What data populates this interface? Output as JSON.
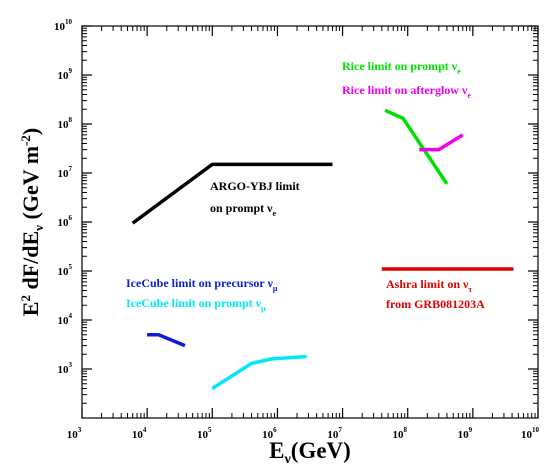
{
  "chart_data": {
    "type": "line",
    "title": "",
    "xlabel": {
      "main": "E",
      "sub": "ν",
      "rest": "(GeV)"
    },
    "ylabel": {
      "p1": "E",
      "sup1": "2",
      "p2": " dF/dE",
      "sub1": "ν",
      "p3": " (GeV m",
      "sup2": "-2",
      "p4": ")"
    },
    "x_scale": "log",
    "y_scale": "log",
    "xlim": [
      1000,
      10000000000
    ],
    "ylim": [
      100,
      10000000000
    ],
    "x_ticks": [
      {
        "value": 1000,
        "base": "10",
        "exp": "3"
      },
      {
        "value": 10000,
        "base": "10",
        "exp": "4"
      },
      {
        "value": 100000,
        "base": "10",
        "exp": "5"
      },
      {
        "value": 1000000,
        "base": "10",
        "exp": "6"
      },
      {
        "value": 10000000,
        "base": "10",
        "exp": "7"
      },
      {
        "value": 100000000,
        "base": "10",
        "exp": "8"
      },
      {
        "value": 1000000000,
        "base": "10",
        "exp": "9"
      },
      {
        "value": 10000000000,
        "base": "10",
        "exp": "10"
      }
    ],
    "y_ticks": [
      {
        "value": 1000,
        "base": "10",
        "exp": "3"
      },
      {
        "value": 10000,
        "base": "10",
        "exp": "4"
      },
      {
        "value": 100000,
        "base": "10",
        "exp": "5"
      },
      {
        "value": 1000000,
        "base": "10",
        "exp": "6"
      },
      {
        "value": 10000000,
        "base": "10",
        "exp": "7"
      },
      {
        "value": 100000000,
        "base": "10",
        "exp": "8"
      },
      {
        "value": 1000000000,
        "base": "10",
        "exp": "9"
      },
      {
        "value": 10000000000,
        "base": "10",
        "exp": "10"
      }
    ],
    "grid": false,
    "series": [
      {
        "key": "argo",
        "color": "#000000",
        "points": [
          [
            6000,
            950000
          ],
          [
            100000,
            15000000
          ],
          [
            7000000,
            15000000
          ]
        ],
        "label": [
          [
            {
              "t": "ARGO-YBJ limit",
              "s": "n"
            }
          ],
          [
            {
              "t": "on prompt ",
              "s": "n"
            },
            {
              "t": "ν",
              "s": "n"
            },
            {
              "t": "e",
              "s": "sub"
            }
          ]
        ]
      },
      {
        "key": "icecube-precursor",
        "color": "#0a1fd0",
        "points": [
          [
            10000,
            5000
          ],
          [
            15000,
            5000
          ],
          [
            38000,
            3000
          ]
        ],
        "label": [
          [
            {
              "t": "IceCube limit on precursor ",
              "s": "n"
            },
            {
              "t": "ν",
              "s": "n"
            },
            {
              "t": "μ",
              "s": "sub"
            }
          ]
        ]
      },
      {
        "key": "icecube-prompt",
        "color": "#00e8f8",
        "points": [
          [
            100000,
            400
          ],
          [
            400000,
            1300
          ],
          [
            800000,
            1600
          ],
          [
            2800000,
            1800
          ]
        ],
        "label": [
          [
            {
              "t": "IceCube limit on prompt ",
              "s": "n"
            },
            {
              "t": "ν",
              "s": "n"
            },
            {
              "t": "μ",
              "s": "sub"
            }
          ]
        ]
      },
      {
        "key": "rice-prompt",
        "color": "#00e000",
        "points": [
          [
            45000000,
            190000000
          ],
          [
            85000000,
            130000000
          ],
          [
            400000000,
            6000000
          ]
        ],
        "label": [
          [
            {
              "t": "Rice limit on prompt ",
              "s": "n"
            },
            {
              "t": "ν",
              "s": "n"
            },
            {
              "t": "e",
              "s": "sub"
            }
          ]
        ]
      },
      {
        "key": "rice-afterglow",
        "color": "#f000f0",
        "points": [
          [
            150000000,
            30000000
          ],
          [
            300000000,
            30000000
          ],
          [
            700000000,
            60000000
          ]
        ],
        "label": [
          [
            {
              "t": "Rice limit on afterglow ",
              "s": "n"
            },
            {
              "t": "ν",
              "s": "n"
            },
            {
              "t": "e",
              "s": "sub"
            }
          ]
        ]
      },
      {
        "key": "ashra",
        "color": "#e00000",
        "points": [
          [
            40000000,
            110000
          ],
          [
            4200000000,
            110000
          ]
        ],
        "label": [
          [
            {
              "t": "Ashra limit on ",
              "s": "n"
            },
            {
              "t": "ν",
              "s": "n"
            },
            {
              "t": "τ",
              "s": "sub"
            }
          ],
          [
            {
              "t": "from GRB081203A",
              "s": "n"
            }
          ]
        ]
      }
    ]
  }
}
